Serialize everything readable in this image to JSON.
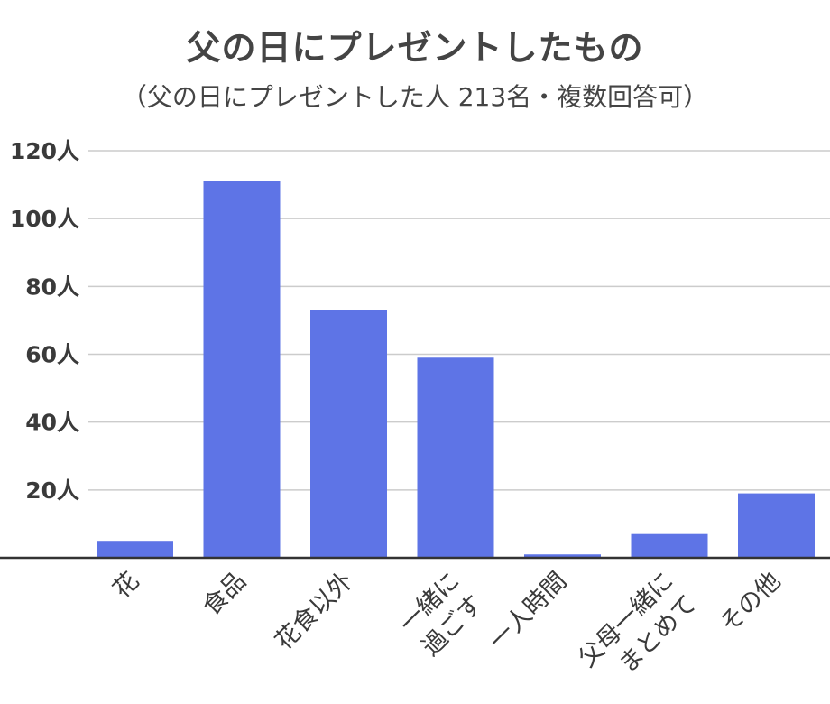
{
  "chart_data": {
    "type": "bar",
    "title": "父の日にプレゼントしたもの",
    "subtitle": "（父の日にプレゼントした人 213名・複数回答可）",
    "categories": [
      "花",
      "食品",
      "花食以外",
      "一緒に過ごす",
      "一人時間",
      "父母一緒にまとめて",
      "その他"
    ],
    "category_label_lines": [
      [
        "花"
      ],
      [
        "食品"
      ],
      [
        "花食以外"
      ],
      [
        "一緒に",
        "過ごす"
      ],
      [
        "一人時間"
      ],
      [
        "父母一緒に",
        "まとめて"
      ],
      [
        "その他"
      ]
    ],
    "values": [
      5,
      111,
      73,
      59,
      1,
      7,
      19
    ],
    "ylim": [
      0,
      120
    ],
    "yticks": [
      20,
      40,
      60,
      80,
      100,
      120
    ],
    "ytick_labels": [
      "20人",
      "40人",
      "60人",
      "80人",
      "100人",
      "120人"
    ],
    "grid": true,
    "colors": {
      "bar": "#5e74e6",
      "grid": "#cccccc",
      "axis": "#333333",
      "text": "#3a3a3a"
    }
  }
}
